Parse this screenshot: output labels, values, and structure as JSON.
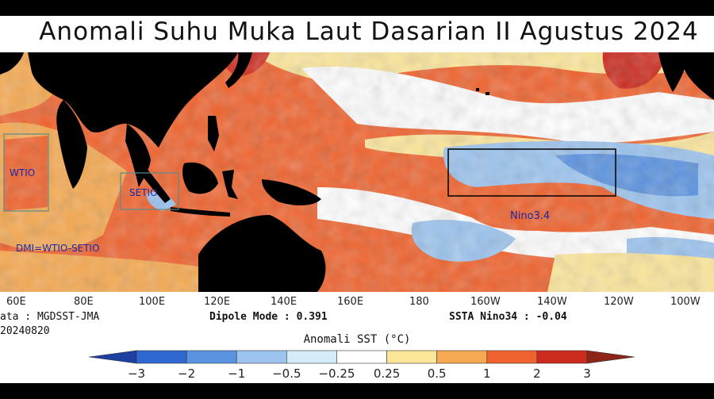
{
  "title": "Anomali Suhu Muka Laut Dasarian II Agustus 2024",
  "map": {
    "boxes": [
      {
        "name": "WTIO",
        "label": "WTIO"
      },
      {
        "name": "SETIO",
        "label": "SETIO"
      },
      {
        "name": "Nino3.4",
        "label": "Nino3.4"
      }
    ],
    "formula": "DMI=WTIO-SETIO",
    "longitude_labels": [
      "60E",
      "80E",
      "100E",
      "120E",
      "140E",
      "160E",
      "180",
      "160W",
      "140W",
      "120W",
      "100W"
    ]
  },
  "info": {
    "data_source": "ata : MGDSST-JMA",
    "date": "20240820",
    "dipole_mode": "Dipole Mode : 0.391",
    "ssta_nino34": "SSTA Nino34 : -0.04"
  },
  "colorbar": {
    "title": "Anomali SST (°C)",
    "ticks": [
      "−3",
      "−2",
      "−1",
      "−0.5",
      "−0.25",
      "0.25",
      "0.5",
      "1",
      "2",
      "3"
    ],
    "colors": [
      "#1c3fa0",
      "#2f68d0",
      "#5b93e0",
      "#9cc4ef",
      "#d3ecf8",
      "#ffffff",
      "#fbe69a",
      "#f6a950",
      "#f0632e",
      "#cd2a1e",
      "#8c2417"
    ]
  }
}
